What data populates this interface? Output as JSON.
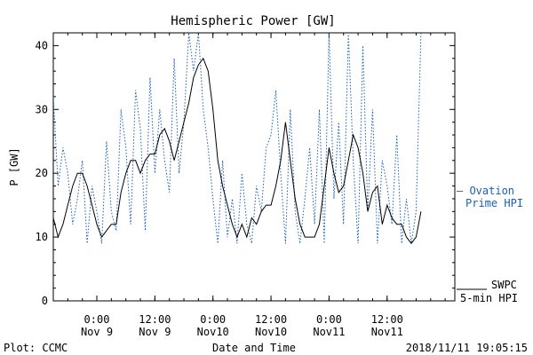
{
  "chart_data": {
    "type": "line",
    "title": "Hemispheric Power [GW]",
    "ylabel": "P [GW]",
    "xlabel": "Date and Time",
    "ylim": [
      0,
      42
    ],
    "yticks": [
      0,
      10,
      20,
      30,
      40
    ],
    "xlim": [
      "2018-11-08 15:00",
      "2018-11-12 02:00"
    ],
    "xticks": [
      {
        "t": "2018-11-09 00:00",
        "l1": "0:00",
        "l2": "Nov 9"
      },
      {
        "t": "2018-11-09 12:00",
        "l1": "12:00",
        "l2": "Nov 9"
      },
      {
        "t": "2018-11-10 00:00",
        "l1": "0:00",
        "l2": "Nov10"
      },
      {
        "t": "2018-11-10 12:00",
        "l1": "12:00",
        "l2": "Nov10"
      },
      {
        "t": "2018-11-11 00:00",
        "l1": "0:00",
        "l2": "Nov11"
      },
      {
        "t": "2018-11-11 12:00",
        "l1": "12:00",
        "l2": "Nov11"
      }
    ],
    "grid": false,
    "legend_position": "right",
    "series": [
      {
        "name": "SWPC 5-min HPI",
        "legend_lines": [
          "SWPC",
          "5-min HPI"
        ],
        "color": "#000000",
        "style": "solid",
        "x": [
          "2018-11-08 15:00",
          "2018-11-08 16:00",
          "2018-11-08 17:00",
          "2018-11-08 18:00",
          "2018-11-08 19:00",
          "2018-11-08 20:00",
          "2018-11-08 21:00",
          "2018-11-08 22:00",
          "2018-11-08 23:00",
          "2018-11-09 00:00",
          "2018-11-09 01:00",
          "2018-11-09 02:00",
          "2018-11-09 03:00",
          "2018-11-09 04:00",
          "2018-11-09 05:00",
          "2018-11-09 06:00",
          "2018-11-09 07:00",
          "2018-11-09 08:00",
          "2018-11-09 09:00",
          "2018-11-09 10:00",
          "2018-11-09 11:00",
          "2018-11-09 12:00",
          "2018-11-09 13:00",
          "2018-11-09 14:00",
          "2018-11-09 15:00",
          "2018-11-09 16:00",
          "2018-11-09 17:00",
          "2018-11-09 18:00",
          "2018-11-09 19:00",
          "2018-11-09 20:00",
          "2018-11-09 21:00",
          "2018-11-09 22:00",
          "2018-11-09 23:00",
          "2018-11-10 00:00",
          "2018-11-10 01:00",
          "2018-11-10 02:00",
          "2018-11-10 03:00",
          "2018-11-10 04:00",
          "2018-11-10 05:00",
          "2018-11-10 06:00",
          "2018-11-10 07:00",
          "2018-11-10 08:00",
          "2018-11-10 09:00",
          "2018-11-10 10:00",
          "2018-11-10 11:00",
          "2018-11-10 12:00",
          "2018-11-10 13:00",
          "2018-11-10 14:00",
          "2018-11-10 15:00",
          "2018-11-10 16:00",
          "2018-11-10 17:00",
          "2018-11-10 18:00",
          "2018-11-10 19:00",
          "2018-11-10 20:00",
          "2018-11-10 21:00",
          "2018-11-10 22:00",
          "2018-11-10 23:00",
          "2018-11-11 00:00",
          "2018-11-11 01:00",
          "2018-11-11 02:00",
          "2018-11-11 03:00",
          "2018-11-11 04:00",
          "2018-11-11 05:00",
          "2018-11-11 06:00",
          "2018-11-11 07:00",
          "2018-11-11 08:00",
          "2018-11-11 09:00",
          "2018-11-11 10:00",
          "2018-11-11 11:00",
          "2018-11-11 12:00",
          "2018-11-11 13:00",
          "2018-11-11 14:00",
          "2018-11-11 15:00",
          "2018-11-11 16:00",
          "2018-11-11 17:00",
          "2018-11-11 18:00",
          "2018-11-11 19:00"
        ],
        "y": [
          13,
          10,
          12,
          15,
          18,
          20,
          20,
          18,
          15,
          12,
          10,
          11,
          12,
          12,
          17,
          20,
          22,
          22,
          20,
          22,
          23,
          23,
          26,
          27,
          25,
          22,
          25,
          28,
          31,
          35,
          37,
          38,
          36,
          30,
          22,
          18,
          15,
          12,
          10,
          12,
          10,
          13,
          12,
          14,
          15,
          15,
          18,
          22,
          28,
          22,
          16,
          12,
          10,
          10,
          10,
          12,
          18,
          24,
          20,
          17,
          18,
          22,
          26,
          24,
          20,
          14,
          17,
          18,
          12,
          15,
          13,
          12,
          12,
          10,
          9,
          10,
          14
        ]
      },
      {
        "name": "Ovation Prime HPI",
        "legend_lines": [
          "— Ovation",
          "Prime HPI"
        ],
        "color": "#1a5fb4",
        "style": "dotted",
        "x": [
          "2018-11-08 15:00",
          "2018-11-08 16:00",
          "2018-11-08 17:00",
          "2018-11-08 18:00",
          "2018-11-08 19:00",
          "2018-11-08 20:00",
          "2018-11-08 21:00",
          "2018-11-08 22:00",
          "2018-11-08 23:00",
          "2018-11-09 00:00",
          "2018-11-09 01:00",
          "2018-11-09 02:00",
          "2018-11-09 03:00",
          "2018-11-09 04:00",
          "2018-11-09 05:00",
          "2018-11-09 06:00",
          "2018-11-09 07:00",
          "2018-11-09 08:00",
          "2018-11-09 09:00",
          "2018-11-09 10:00",
          "2018-11-09 11:00",
          "2018-11-09 12:00",
          "2018-11-09 13:00",
          "2018-11-09 14:00",
          "2018-11-09 15:00",
          "2018-11-09 16:00",
          "2018-11-09 17:00",
          "2018-11-09 18:00",
          "2018-11-09 19:00",
          "2018-11-09 20:00",
          "2018-11-09 21:00",
          "2018-11-09 22:00",
          "2018-11-09 23:00",
          "2018-11-10 00:00",
          "2018-11-10 01:00",
          "2018-11-10 02:00",
          "2018-11-10 03:00",
          "2018-11-10 04:00",
          "2018-11-10 05:00",
          "2018-11-10 06:00",
          "2018-11-10 07:00",
          "2018-11-10 08:00",
          "2018-11-10 09:00",
          "2018-11-10 10:00",
          "2018-11-10 11:00",
          "2018-11-10 12:00",
          "2018-11-10 13:00",
          "2018-11-10 14:00",
          "2018-11-10 15:00",
          "2018-11-10 16:00",
          "2018-11-10 17:00",
          "2018-11-10 18:00",
          "2018-11-10 19:00",
          "2018-11-10 20:00",
          "2018-11-10 21:00",
          "2018-11-10 22:00",
          "2018-11-10 23:00",
          "2018-11-11 00:00",
          "2018-11-11 01:00",
          "2018-11-11 02:00",
          "2018-11-11 03:00",
          "2018-11-11 04:00",
          "2018-11-11 05:00",
          "2018-11-11 06:00",
          "2018-11-11 07:00",
          "2018-11-11 08:00",
          "2018-11-11 09:00",
          "2018-11-11 10:00",
          "2018-11-11 11:00",
          "2018-11-11 12:00",
          "2018-11-11 13:00",
          "2018-11-11 14:00",
          "2018-11-11 15:00",
          "2018-11-11 16:00",
          "2018-11-11 17:00",
          "2018-11-11 18:00",
          "2018-11-11 19:00"
        ],
        "y": [
          32,
          18,
          24,
          20,
          12,
          16,
          22,
          9,
          18,
          14,
          9,
          25,
          14,
          11,
          30,
          24,
          12,
          33,
          27,
          11,
          35,
          20,
          30,
          22,
          17,
          38,
          20,
          28,
          42,
          36,
          42,
          30,
          24,
          16,
          9,
          22,
          10,
          16,
          9,
          20,
          12,
          9,
          18,
          14,
          24,
          26,
          33,
          20,
          9,
          30,
          14,
          9,
          16,
          24,
          12,
          30,
          9,
          42,
          16,
          28,
          12,
          42,
          22,
          9,
          40,
          14,
          30,
          9,
          22,
          18,
          12,
          26,
          9,
          16,
          9,
          14,
          42
        ]
      }
    ]
  },
  "footer": {
    "plot_credit": "Plot: CCMC",
    "timestamp": "2018/11/11 19:05:15"
  }
}
